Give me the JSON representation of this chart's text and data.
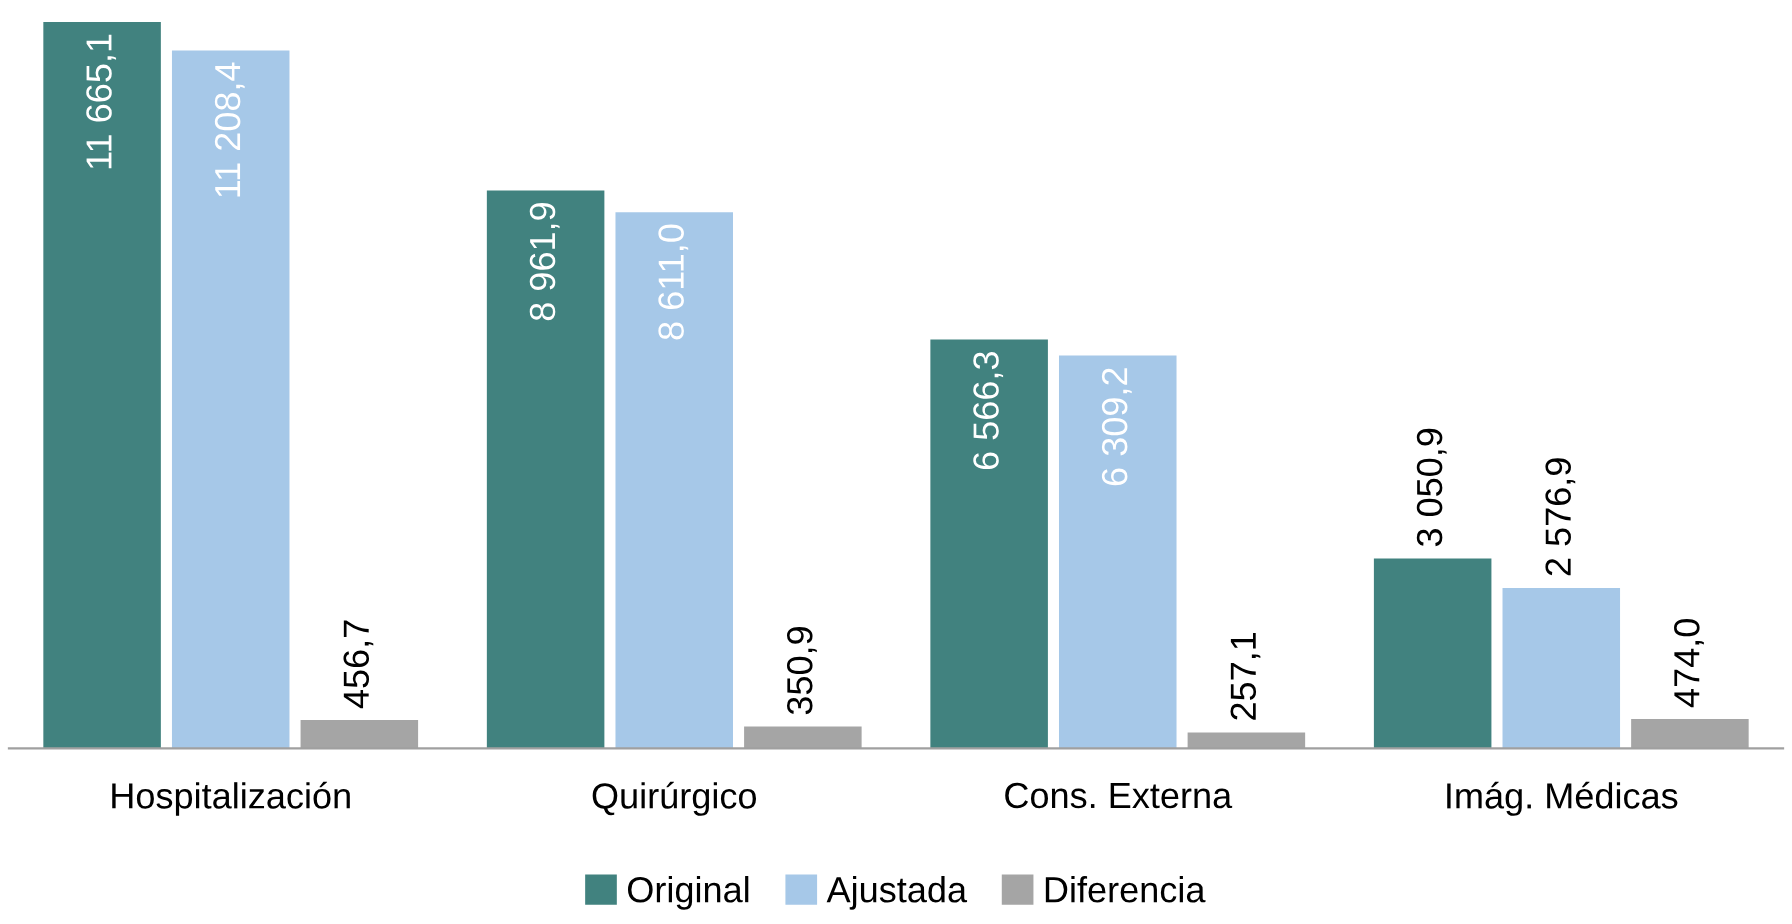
{
  "chart_data": {
    "type": "bar",
    "categories": [
      "Hospitalización",
      "Quirúrgico",
      "Cons. Externa",
      "Imág. Médicas"
    ],
    "series": [
      {
        "name": "Original",
        "color": "#41827f",
        "values": [
          11665.1,
          8961.9,
          6566.3,
          3050.9
        ],
        "value_labels": [
          "11 665,1",
          "8 961,9",
          "6 566,3",
          "3 050,9"
        ]
      },
      {
        "name": "Ajustada",
        "color": "#a6c8e8",
        "values": [
          11208.4,
          8611.0,
          6309.2,
          2576.9
        ],
        "value_labels": [
          "11 208,4",
          "8 611,0",
          "6 309,2",
          "2 576,9"
        ]
      },
      {
        "name": "Diferencia",
        "color": "#a5a5a5",
        "values": [
          456.7,
          350.9,
          257.1,
          474.0
        ],
        "value_labels": [
          "456,7",
          "350,9",
          "257,1",
          "474,0"
        ]
      }
    ],
    "legend": "bottom",
    "grid": false
  }
}
